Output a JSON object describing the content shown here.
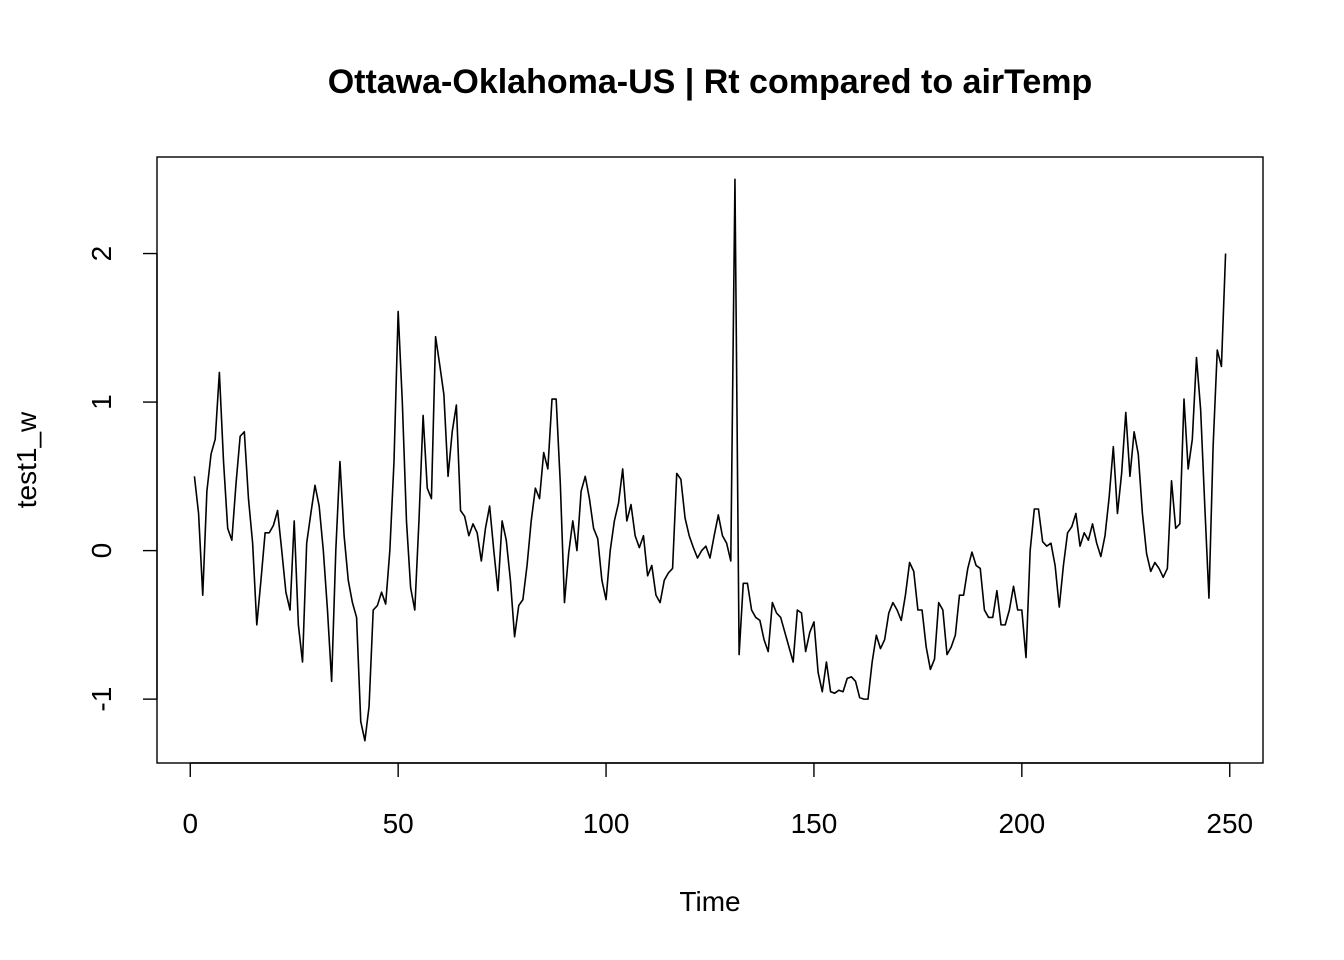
{
  "chart_data": {
    "type": "line",
    "title": "Ottawa-Oklahoma-US | Rt compared to airTemp",
    "xlabel": "Time",
    "ylabel": "test1_w",
    "xlim": [
      -8,
      258
    ],
    "ylim": [
      -1.43,
      2.65
    ],
    "x_ticks": [
      0,
      50,
      100,
      150,
      200,
      250
    ],
    "y_ticks": [
      -1,
      0,
      1,
      2
    ],
    "x_tick_labels": [
      "0",
      "50",
      "100",
      "150",
      "200",
      "250"
    ],
    "y_tick_labels": [
      "-1",
      "0",
      "1",
      "2"
    ],
    "grid": false,
    "series": [
      {
        "x_start": 1,
        "x_step": 1,
        "values": [
          0.5,
          0.25,
          -0.3,
          0.4,
          0.65,
          0.75,
          1.2,
          0.6,
          0.15,
          0.07,
          0.45,
          0.77,
          0.8,
          0.35,
          0.05,
          -0.5,
          -0.2,
          0.12,
          0.12,
          0.17,
          0.27,
          0.0,
          -0.28,
          -0.4,
          0.2,
          -0.5,
          -0.75,
          0.05,
          0.25,
          0.44,
          0.3,
          0.0,
          -0.4,
          -0.88,
          0.0,
          0.6,
          0.1,
          -0.2,
          -0.35,
          -0.45,
          -1.15,
          -1.28,
          -1.05,
          -0.4,
          -0.37,
          -0.28,
          -0.36,
          0.0,
          0.6,
          1.61,
          1.0,
          0.2,
          -0.25,
          -0.4,
          0.2,
          0.91,
          0.42,
          0.35,
          1.44,
          1.25,
          1.05,
          0.5,
          0.8,
          0.98,
          0.27,
          0.23,
          0.1,
          0.18,
          0.12,
          -0.07,
          0.15,
          0.3,
          0.0,
          -0.27,
          0.2,
          0.07,
          -0.2,
          -0.58,
          -0.37,
          -0.33,
          -0.1,
          0.2,
          0.42,
          0.35,
          0.66,
          0.55,
          1.02,
          1.02,
          0.45,
          -0.35,
          -0.02,
          0.2,
          0.0,
          0.4,
          0.5,
          0.35,
          0.15,
          0.08,
          -0.2,
          -0.33,
          0.0,
          0.2,
          0.32,
          0.55,
          0.2,
          0.31,
          0.1,
          0.02,
          0.1,
          -0.17,
          -0.1,
          -0.3,
          -0.35,
          -0.2,
          -0.15,
          -0.12,
          0.52,
          0.48,
          0.22,
          0.1,
          0.02,
          -0.05,
          0.0,
          0.03,
          -0.05,
          0.1,
          0.24,
          0.1,
          0.05,
          -0.07,
          2.5,
          -0.7,
          -0.22,
          -0.22,
          -0.4,
          -0.45,
          -0.47,
          -0.6,
          -0.68,
          -0.35,
          -0.42,
          -0.45,
          -0.55,
          -0.65,
          -0.75,
          -0.4,
          -0.42,
          -0.68,
          -0.55,
          -0.48,
          -0.82,
          -0.95,
          -0.75,
          -0.95,
          -0.96,
          -0.94,
          -0.95,
          -0.86,
          -0.85,
          -0.88,
          -0.99,
          -1.0,
          -1.0,
          -0.75,
          -0.57,
          -0.66,
          -0.6,
          -0.42,
          -0.35,
          -0.4,
          -0.47,
          -0.3,
          -0.08,
          -0.14,
          -0.4,
          -0.4,
          -0.65,
          -0.8,
          -0.73,
          -0.35,
          -0.4,
          -0.7,
          -0.65,
          -0.57,
          -0.3,
          -0.3,
          -0.12,
          -0.01,
          -0.1,
          -0.12,
          -0.4,
          -0.45,
          -0.45,
          -0.27,
          -0.5,
          -0.5,
          -0.4,
          -0.24,
          -0.4,
          -0.4,
          -0.72,
          0.0,
          0.28,
          0.28,
          0.06,
          0.03,
          0.05,
          -0.1,
          -0.38,
          -0.1,
          0.12,
          0.16,
          0.25,
          0.03,
          0.12,
          0.07,
          0.18,
          0.05,
          -0.04,
          0.1,
          0.36,
          0.7,
          0.25,
          0.52,
          0.93,
          0.5,
          0.8,
          0.65,
          0.25,
          -0.02,
          -0.14,
          -0.08,
          -0.12,
          -0.18,
          -0.12,
          0.47,
          0.15,
          0.18,
          1.02,
          0.55,
          0.75,
          1.3,
          0.95,
          0.3,
          -0.32,
          0.7,
          1.35,
          1.24,
          2.0
        ]
      }
    ]
  }
}
